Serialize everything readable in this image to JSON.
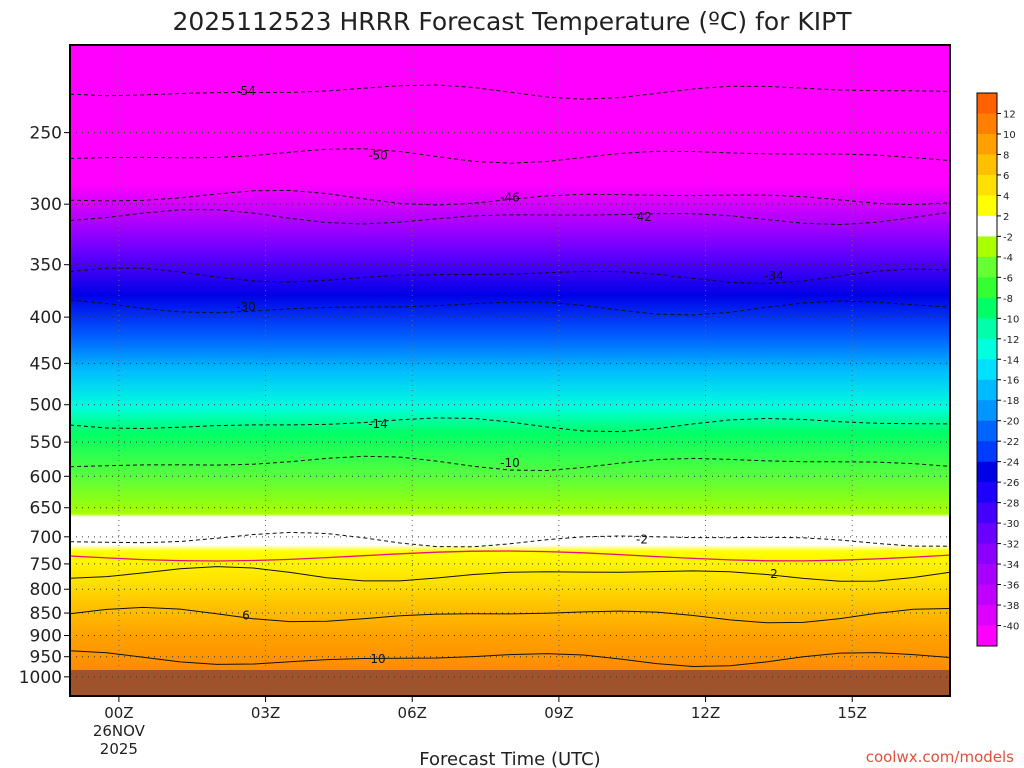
{
  "chart_data": {
    "type": "heatmap",
    "title": "2025112523 HRRR Forecast Temperature (ºC) for KIPT",
    "xlabel": "Forecast Time (UTC)",
    "ylabel": "",
    "x_ticks": [
      {
        "label": "00Z",
        "sub": [
          "26NOV",
          "2025"
        ],
        "hour": 0
      },
      {
        "label": "03Z",
        "sub": [],
        "hour": 3
      },
      {
        "label": "06Z",
        "sub": [],
        "hour": 6
      },
      {
        "label": "09Z",
        "sub": [],
        "hour": 9
      },
      {
        "label": "12Z",
        "sub": [],
        "hour": 12
      },
      {
        "label": "15Z",
        "sub": [],
        "hour": 15
      }
    ],
    "xlim": [
      -1,
      17
    ],
    "y_ticks": [
      250,
      300,
      350,
      400,
      450,
      500,
      550,
      600,
      650,
      700,
      750,
      800,
      850,
      900,
      950,
      1000
    ],
    "ylim": [
      200,
      1050
    ],
    "y_scale": "log",
    "colorbar": {
      "levels": [
        -40,
        -38,
        -36,
        -34,
        -32,
        -30,
        -28,
        -26,
        -24,
        -22,
        -20,
        -18,
        -16,
        -14,
        -12,
        -10,
        -8,
        -6,
        -4,
        -2,
        2,
        4,
        6,
        8,
        10,
        12
      ],
      "colors": [
        "#ff00ff",
        "#dd00ff",
        "#c000ff",
        "#a800ff",
        "#8c00ff",
        "#6a00ff",
        "#4400ff",
        "#1e00ff",
        "#0000e6",
        "#003cff",
        "#0064ff",
        "#0096ff",
        "#00bbff",
        "#00e0ff",
        "#00ffdd",
        "#00ffaa",
        "#00ff66",
        "#33ff33",
        "#66ff33",
        "#aaff00",
        "#ffffff",
        "#ffff00",
        "#ffe000",
        "#ffc000",
        "#ffa000",
        "#ff8000",
        "#ff6000"
      ]
    },
    "contours": [
      {
        "value": -54,
        "label": "-54",
        "color": "#111111"
      },
      {
        "value": -50,
        "label": "-50",
        "color": "#111111"
      },
      {
        "value": -46,
        "label": "-46",
        "color": "#111111"
      },
      {
        "value": -42,
        "label": "-42",
        "color": "#111111"
      },
      {
        "value": -34,
        "label": "-34",
        "color": "#111111"
      },
      {
        "value": -30,
        "label": "-30",
        "color": "#111111"
      },
      {
        "value": -14,
        "label": "-14",
        "color": "#111111"
      },
      {
        "value": -10,
        "label": "-10",
        "color": "#111111"
      },
      {
        "value": -2,
        "label": "-2",
        "color": "#111111"
      },
      {
        "value": 2,
        "label": "2",
        "color": "#111111"
      },
      {
        "value": 6,
        "label": "6",
        "color": "#111111"
      },
      {
        "value": 10,
        "label": "10",
        "color": "#111111"
      }
    ],
    "ground_color": "#a0522d",
    "freezing_line_color": "#e0157a"
  },
  "credit": "coolwx.com/models"
}
